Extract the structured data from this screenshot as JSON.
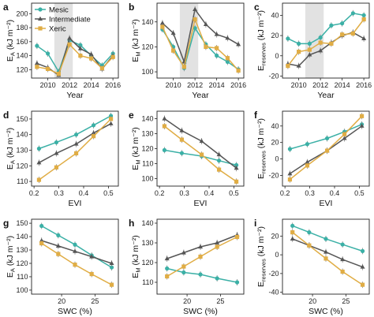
{
  "legend": [
    {
      "name": "Mesic",
      "color": "#3bb0a6",
      "marker": "circle"
    },
    {
      "name": "Intermediate",
      "color": "#555555",
      "marker": "triangle"
    },
    {
      "name": "Xeric",
      "color": "#e0ad45",
      "marker": "square"
    }
  ],
  "chart_data": [
    {
      "panel": "a",
      "type": "line",
      "xlabel": "Year",
      "ylabel": "E",
      "ysub": "A",
      "yunit": " (kJ m⁻²)",
      "xlim": [
        2008.5,
        2016.5
      ],
      "ylim": [
        108,
        215
      ],
      "xticks": [
        2010,
        2012,
        2014,
        2016
      ],
      "yticks": [
        120,
        140,
        160,
        180,
        200
      ],
      "shade": [
        2010.6,
        2012.3
      ],
      "series": [
        {
          "name": "Mesic",
          "x": [
            2009,
            2010,
            2011,
            2012,
            2013,
            2014,
            2015,
            2016
          ],
          "y": [
            154,
            143,
            117,
            162,
            155,
            140,
            126,
            143
          ]
        },
        {
          "name": "Intermediate",
          "x": [
            2009,
            2010,
            2011,
            2012,
            2013,
            2014,
            2015,
            2016
          ],
          "y": [
            129,
            123,
            112,
            165,
            150,
            142,
            121,
            140
          ]
        },
        {
          "name": "Xeric",
          "x": [
            2009,
            2010,
            2011,
            2012,
            2013,
            2014,
            2015,
            2016
          ],
          "y": [
            124,
            121,
            114,
            156,
            140,
            136,
            122,
            138
          ]
        }
      ]
    },
    {
      "panel": "b",
      "type": "line",
      "xlabel": "Year",
      "ylabel": "E",
      "ysub": "M",
      "yunit": " (kJ m⁻²)",
      "xlim": [
        2008.5,
        2016.5
      ],
      "ylim": [
        95,
        155
      ],
      "xticks": [
        2010,
        2012,
        2014,
        2016
      ],
      "yticks": [
        100,
        120,
        140
      ],
      "shade": [
        2010.6,
        2012.3
      ],
      "series": [
        {
          "name": "Mesic",
          "x": [
            2009,
            2010,
            2011,
            2012,
            2013,
            2014,
            2015,
            2016
          ],
          "y": [
            134,
            120,
            103,
            135,
            122,
            113,
            108,
            102
          ]
        },
        {
          "name": "Intermediate",
          "x": [
            2009,
            2010,
            2011,
            2012,
            2013,
            2014,
            2015,
            2016
          ],
          "y": [
            139,
            131,
            108,
            150,
            138,
            130,
            127,
            122
          ]
        },
        {
          "name": "Xeric",
          "x": [
            2009,
            2010,
            2011,
            2012,
            2013,
            2014,
            2015,
            2016
          ],
          "y": [
            136,
            117,
            104,
            142,
            120,
            119,
            111,
            101
          ]
        }
      ]
    },
    {
      "panel": "c",
      "type": "line",
      "xlabel": "Year",
      "ylabel": "E",
      "ysub": "reserves",
      "yunit": " (kJ m⁻²)",
      "xlim": [
        2008.5,
        2016.5
      ],
      "ylim": [
        -22,
        52
      ],
      "xticks": [
        2010,
        2012,
        2014,
        2016
      ],
      "yticks": [
        -20,
        0,
        20,
        40
      ],
      "shade": [
        2010.6,
        2012.3
      ],
      "series": [
        {
          "name": "Mesic",
          "x": [
            2009,
            2010,
            2011,
            2012,
            2013,
            2014,
            2015,
            2016
          ],
          "y": [
            17,
            12,
            12,
            18,
            30,
            32,
            42,
            40
          ]
        },
        {
          "name": "Intermediate",
          "x": [
            2009,
            2010,
            2011,
            2012,
            2013,
            2014,
            2015,
            2016
          ],
          "y": [
            -8,
            -10,
            1,
            5,
            13,
            20,
            23,
            17
          ]
        },
        {
          "name": "Xeric",
          "x": [
            2009,
            2010,
            2011,
            2012,
            2013,
            2014,
            2015,
            2016
          ],
          "y": [
            -10,
            4,
            6,
            13,
            12,
            21,
            22,
            36
          ]
        }
      ]
    },
    {
      "panel": "d",
      "type": "line",
      "xlabel": "EVI",
      "ylabel": "E",
      "ysub": "A",
      "yunit": " (kJ m⁻²)",
      "xlim": [
        0.19,
        0.54
      ],
      "ylim": [
        107,
        155
      ],
      "xticks": [
        0.2,
        0.3,
        0.4,
        0.5
      ],
      "yticks": [
        110,
        120,
        130,
        140,
        150
      ],
      "series": [
        {
          "name": "Mesic",
          "x": [
            0.22,
            0.29,
            0.37,
            0.44,
            0.51
          ],
          "y": [
            131,
            135,
            140,
            146,
            152
          ]
        },
        {
          "name": "Intermediate",
          "x": [
            0.22,
            0.29,
            0.37,
            0.44,
            0.51
          ],
          "y": [
            122,
            128,
            134,
            141,
            147
          ]
        },
        {
          "name": "Xeric",
          "x": [
            0.22,
            0.29,
            0.37,
            0.44,
            0.51
          ],
          "y": [
            111,
            119,
            128,
            139,
            150
          ]
        }
      ]
    },
    {
      "panel": "e",
      "type": "line",
      "xlabel": "EVI",
      "ylabel": "E",
      "ysub": "M",
      "yunit": " (kJ m⁻²)",
      "xlim": [
        0.19,
        0.54
      ],
      "ylim": [
        95,
        145
      ],
      "xticks": [
        0.2,
        0.3,
        0.4,
        0.5
      ],
      "yticks": [
        100,
        110,
        120,
        130,
        140
      ],
      "series": [
        {
          "name": "Mesic",
          "x": [
            0.22,
            0.29,
            0.37,
            0.44,
            0.51
          ],
          "y": [
            119,
            117,
            115,
            112,
            109
          ]
        },
        {
          "name": "Intermediate",
          "x": [
            0.22,
            0.29,
            0.37,
            0.44,
            0.51
          ],
          "y": [
            140,
            132,
            125,
            116,
            107
          ]
        },
        {
          "name": "Xeric",
          "x": [
            0.22,
            0.29,
            0.37,
            0.44,
            0.51
          ],
          "y": [
            135,
            126,
            116,
            106,
            98
          ]
        }
      ]
    },
    {
      "panel": "f",
      "type": "line",
      "xlabel": "EVI",
      "ylabel": "E",
      "ysub": "reserves",
      "yunit": " (kJ m⁻²)",
      "xlim": [
        0.19,
        0.54
      ],
      "ylim": [
        -33,
        58
      ],
      "xticks": [
        0.2,
        0.3,
        0.4,
        0.5
      ],
      "yticks": [
        -20,
        0,
        20,
        40
      ],
      "series": [
        {
          "name": "Mesic",
          "x": [
            0.22,
            0.29,
            0.37,
            0.44,
            0.51
          ],
          "y": [
            12,
            18,
            25,
            33,
            42
          ]
        },
        {
          "name": "Intermediate",
          "x": [
            0.22,
            0.29,
            0.37,
            0.44,
            0.51
          ],
          "y": [
            -18,
            -4,
            10,
            25,
            40
          ]
        },
        {
          "name": "Xeric",
          "x": [
            0.22,
            0.29,
            0.37,
            0.44,
            0.51
          ],
          "y": [
            -25,
            -8,
            10,
            30,
            52
          ]
        }
      ]
    },
    {
      "panel": "g",
      "type": "line",
      "xlabel": "SWC (%)",
      "ylabel": "E",
      "ysub": "A",
      "yunit": " (kJ m⁻²)",
      "xlim": [
        15.5,
        28.5
      ],
      "ylim": [
        97,
        153
      ],
      "xticks": [
        20,
        25
      ],
      "yticks": [
        100,
        110,
        120,
        130,
        140,
        150
      ],
      "series": [
        {
          "name": "Mesic",
          "x": [
            17,
            19.5,
            22,
            24.5,
            27.5
          ],
          "y": [
            148,
            141,
            134,
            126,
            117
          ]
        },
        {
          "name": "Intermediate",
          "x": [
            17,
            19.5,
            22,
            24.5,
            27.5
          ],
          "y": [
            137,
            133,
            129,
            125,
            120
          ]
        },
        {
          "name": "Xeric",
          "x": [
            17,
            19.5,
            22,
            24.5,
            27.5
          ],
          "y": [
            135,
            127,
            119,
            112,
            104
          ]
        }
      ]
    },
    {
      "panel": "h",
      "type": "line",
      "xlabel": "SWC (%)",
      "ylabel": "E",
      "ysub": "M",
      "yunit": " (kJ m⁻²)",
      "xlim": [
        15.5,
        28.5
      ],
      "ylim": [
        104,
        142
      ],
      "xticks": [
        20,
        25
      ],
      "yticks": [
        110,
        120,
        130,
        140
      ],
      "series": [
        {
          "name": "Mesic",
          "x": [
            17,
            19.5,
            22,
            24.5,
            27.5
          ],
          "y": [
            117,
            115,
            114,
            112,
            110
          ]
        },
        {
          "name": "Intermediate",
          "x": [
            17,
            19.5,
            22,
            24.5,
            27.5
          ],
          "y": [
            122,
            125,
            128,
            130,
            134
          ]
        },
        {
          "name": "Xeric",
          "x": [
            17,
            19.5,
            22,
            24.5,
            27.5
          ],
          "y": [
            113,
            118,
            123,
            128,
            133
          ]
        }
      ]
    },
    {
      "panel": "i",
      "type": "line",
      "xlabel": "SWC (%)",
      "ylabel": "E",
      "ysub": "reserves",
      "yunit": " (kJ m⁻²)",
      "xlim": [
        15.5,
        28.5
      ],
      "ylim": [
        -42,
        38
      ],
      "xticks": [
        20,
        25
      ],
      "yticks": [
        -40,
        -20,
        0,
        20
      ],
      "series": [
        {
          "name": "Mesic",
          "x": [
            17,
            19.5,
            22,
            24.5,
            27.5
          ],
          "y": [
            31,
            24,
            17,
            11,
            4
          ]
        },
        {
          "name": "Intermediate",
          "x": [
            17,
            19.5,
            22,
            24.5,
            27.5
          ],
          "y": [
            17,
            10,
            3,
            -5,
            -13
          ]
        },
        {
          "name": "Xeric",
          "x": [
            17,
            19.5,
            22,
            24.5,
            27.5
          ],
          "y": [
            24,
            10,
            -4,
            -18,
            -32
          ]
        }
      ]
    }
  ]
}
